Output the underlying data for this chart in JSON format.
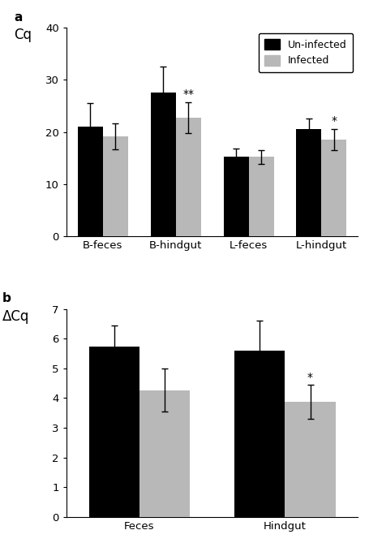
{
  "panel_a": {
    "ylabel": "Cq",
    "ylim": [
      0,
      40
    ],
    "yticks": [
      0,
      10,
      20,
      30,
      40
    ],
    "categories": [
      "B-feces",
      "B-hindgut",
      "L-feces",
      "L-hindgut"
    ],
    "uninfected_values": [
      21.0,
      27.5,
      15.3,
      20.5
    ],
    "infected_values": [
      19.2,
      22.7,
      15.2,
      18.5
    ],
    "uninfected_errors": [
      4.5,
      5.0,
      1.5,
      2.0
    ],
    "infected_errors": [
      2.5,
      3.0,
      1.3,
      2.0
    ],
    "significance": [
      "",
      "**",
      "",
      "*"
    ],
    "bar_color_uninfected": "#000000",
    "bar_color_infected": "#b8b8b8",
    "legend_labels": [
      "Un-infected",
      "Infected"
    ]
  },
  "panel_b": {
    "ylabel": "ΔCq",
    "ylim": [
      0,
      7
    ],
    "yticks": [
      0,
      1,
      2,
      3,
      4,
      5,
      6,
      7
    ],
    "categories": [
      "Feces",
      "Hindgut"
    ],
    "uninfected_values": [
      5.72,
      5.6
    ],
    "infected_values": [
      4.27,
      3.88
    ],
    "uninfected_errors": [
      0.72,
      1.0
    ],
    "infected_errors": [
      0.72,
      0.58
    ],
    "significance": [
      "",
      "*"
    ],
    "bar_color_uninfected": "#000000",
    "bar_color_infected": "#b8b8b8"
  },
  "bar_width": 0.38,
  "label_a": "a",
  "label_b": "b"
}
